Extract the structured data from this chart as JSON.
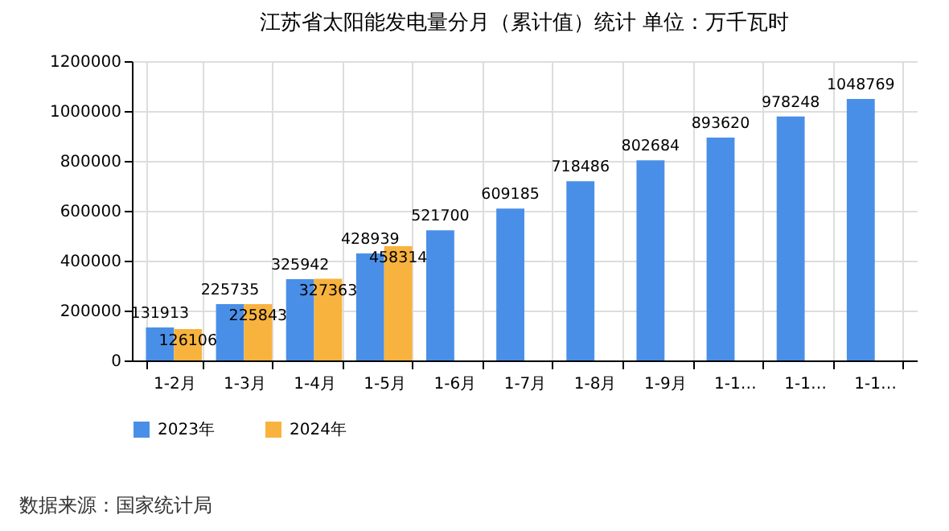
{
  "chart_data": {
    "type": "bar",
    "title": "江苏省太阳能发电量分月（累计值）统计  单位：万千瓦时",
    "categories": [
      "1-2月",
      "1-3月",
      "1-4月",
      "1-5月",
      "1-6月",
      "1-7月",
      "1-8月",
      "1-9月",
      "1-1…",
      "1-1…",
      "1-1…"
    ],
    "series": [
      {
        "name": "2023年",
        "color": "#4a8fe7",
        "values": [
          131913,
          225735,
          325942,
          428939,
          521700,
          609185,
          718486,
          802684,
          893620,
          978248,
          1048769
        ]
      },
      {
        "name": "2024年",
        "color": "#f8b33e",
        "values": [
          126106,
          225843,
          327363,
          458314,
          null,
          null,
          null,
          null,
          null,
          null,
          null
        ]
      }
    ],
    "ylim": [
      0,
      1200000
    ],
    "yticks": [
      0,
      200000,
      400000,
      600000,
      800000,
      1000000,
      1200000
    ],
    "grid": true,
    "legend": "bottom",
    "data_labels": true,
    "annotations": [
      "数据来源：国家统计局"
    ]
  }
}
